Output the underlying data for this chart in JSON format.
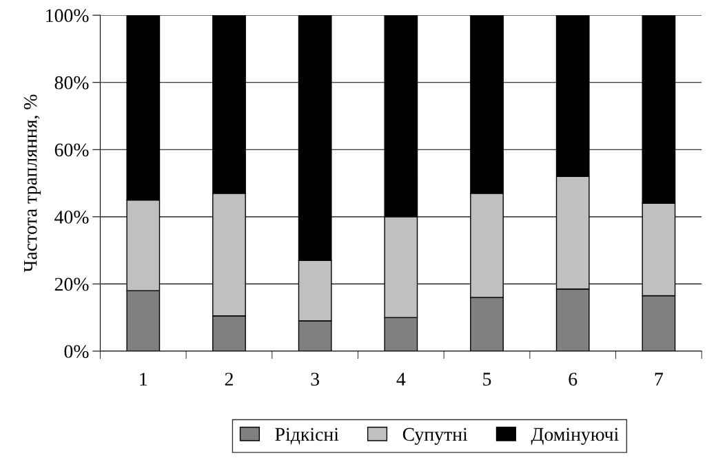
{
  "chart_data": {
    "type": "bar",
    "stacked": true,
    "ylabel": "Частота трапляння, %",
    "categories": [
      "1",
      "2",
      "3",
      "4",
      "5",
      "6",
      "7"
    ],
    "series": [
      {
        "name": "Рідкісні",
        "color": "#808080",
        "values": [
          18,
          10.5,
          9,
          10,
          16,
          18.5,
          16.5
        ]
      },
      {
        "name": "Супутні",
        "color": "#c0c0c0",
        "values": [
          27,
          36.5,
          18,
          30,
          31,
          33.5,
          27.5
        ]
      },
      {
        "name": "Домінуючі",
        "color": "#000000",
        "values": [
          55,
          53,
          73,
          60,
          53,
          48,
          56
        ]
      }
    ],
    "ylim": [
      0,
      100
    ],
    "yticks": [
      {
        "value": 0,
        "label": "0%"
      },
      {
        "value": 20,
        "label": "20%"
      },
      {
        "value": 40,
        "label": "40%"
      },
      {
        "value": 60,
        "label": "60%"
      },
      {
        "value": 80,
        "label": "80%"
      },
      {
        "value": 100,
        "label": "100%"
      }
    ],
    "grid": "y",
    "legend": "bottom"
  }
}
